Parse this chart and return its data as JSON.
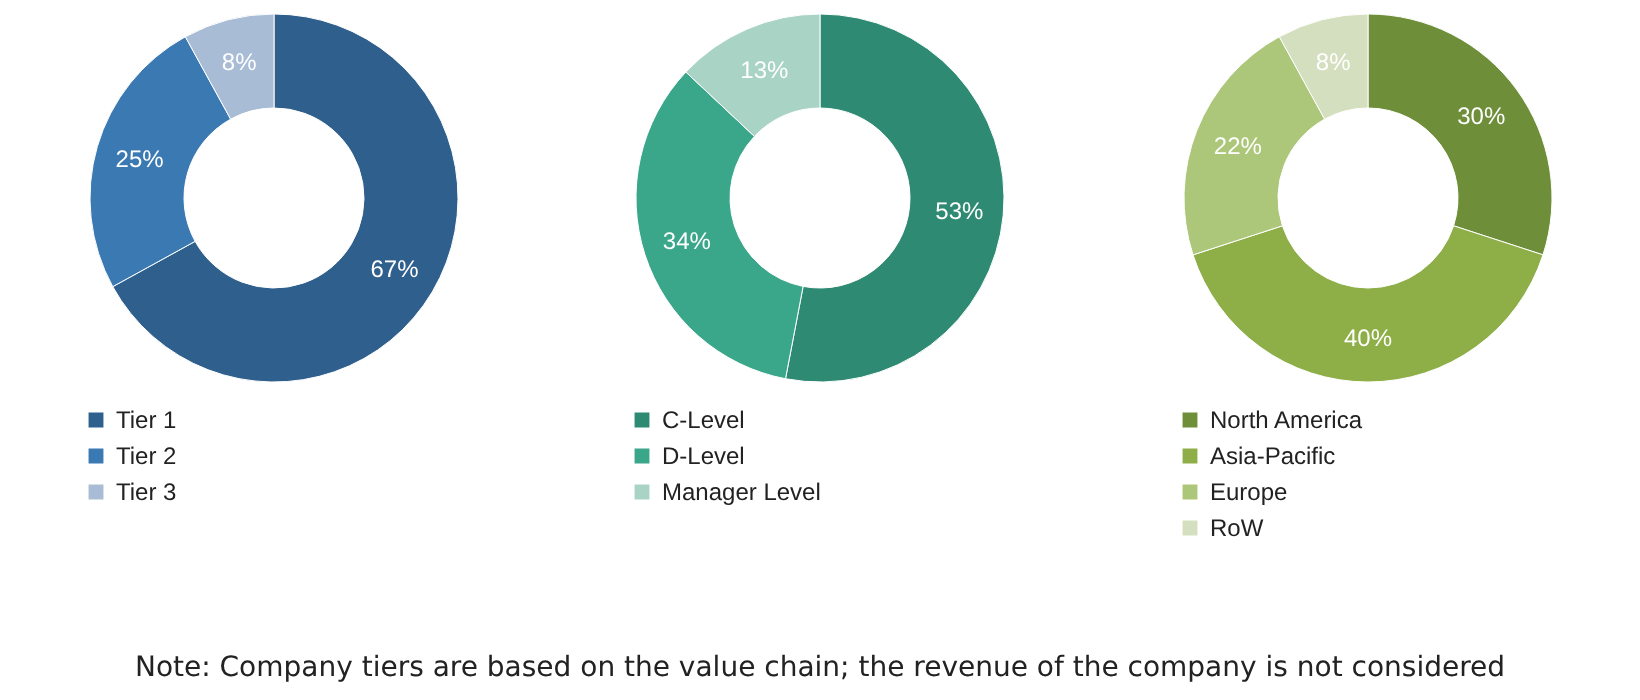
{
  "chart_data": [
    {
      "type": "donut",
      "categories": [
        "Tier 1",
        "Tier 2",
        "Tier 3"
      ],
      "values": [
        67,
        25,
        8
      ],
      "colors": [
        "#2f5f8c",
        "#3b79b2",
        "#a8bcd6"
      ],
      "value_labels": [
        "67%",
        "25%",
        "8%"
      ],
      "legend": "bottom"
    },
    {
      "type": "donut",
      "categories": [
        "C-Level",
        "D-Level",
        "Manager Level"
      ],
      "values": [
        53,
        34,
        13
      ],
      "colors": [
        "#2e8a72",
        "#3aa68a",
        "#a9d4c5"
      ],
      "value_labels": [
        "53%",
        "34%",
        "13%"
      ],
      "legend": "bottom"
    },
    {
      "type": "donut",
      "categories": [
        "North America",
        "Asia-Pacific",
        "Europe",
        "RoW"
      ],
      "values": [
        30,
        40,
        22,
        8
      ],
      "colors": [
        "#6e8e3a",
        "#8eae48",
        "#adc77a",
        "#d4dfbf"
      ],
      "value_labels": [
        "30%",
        "40%",
        "22%",
        "8%"
      ],
      "legend": "bottom"
    },
    {
      "type": "other",
      "annotations": [
        "Note: Company tiers are based on the value chain; the revenue of the company is not considered"
      ]
    }
  ]
}
